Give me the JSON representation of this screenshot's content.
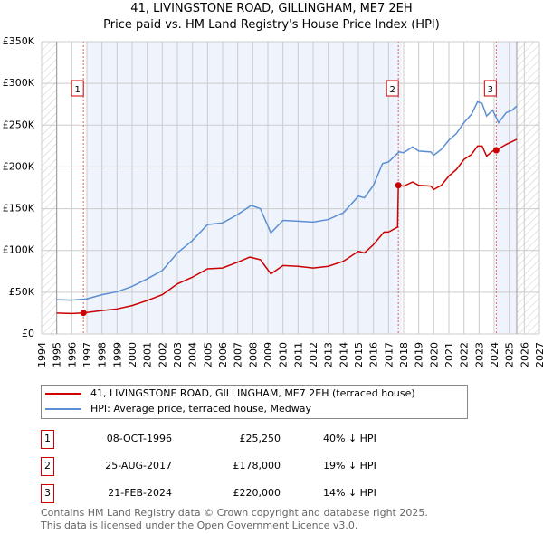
{
  "title": "41, LIVINGSTONE ROAD, GILLINGHAM, ME7 2EH",
  "subtitle": "Price paid vs. HM Land Registry's House Price Index (HPI)",
  "chart_data": {
    "type": "line",
    "title": "41, LIVINGSTONE ROAD, GILLINGHAM, ME7 2EH - Price paid vs. HM Land Registry's House Price Index (HPI)",
    "xlim": [
      1994,
      2027
    ],
    "ylim": [
      0,
      350000
    ],
    "x_ticks": [
      "1994",
      "1995",
      "1996",
      "1997",
      "1998",
      "1999",
      "2000",
      "2001",
      "2002",
      "2003",
      "2004",
      "2005",
      "2006",
      "2007",
      "2008",
      "2009",
      "2010",
      "2011",
      "2012",
      "2013",
      "2014",
      "2015",
      "2016",
      "2017",
      "2018",
      "2019",
      "2020",
      "2021",
      "2022",
      "2023",
      "2024",
      "2025",
      "2026",
      "2027"
    ],
    "y_ticks": [
      {
        "v": 0,
        "label": "£0"
      },
      {
        "v": 50000,
        "label": "£50K"
      },
      {
        "v": 100000,
        "label": "£100K"
      },
      {
        "v": 150000,
        "label": "£150K"
      },
      {
        "v": 200000,
        "label": "£200K"
      },
      {
        "v": 250000,
        "label": "£250K"
      },
      {
        "v": 300000,
        "label": "£300K"
      },
      {
        "v": 350000,
        "label": "£350K"
      }
    ],
    "grid": true,
    "data_range": [
      1995,
      2025.5
    ],
    "series": [
      {
        "name": "41, LIVINGSTONE ROAD, GILLINGHAM, ME7 2EH (terraced house)",
        "color": "#cc0000",
        "points": [
          [
            1995,
            25000
          ],
          [
            1996,
            24500
          ],
          [
            1996.77,
            25250
          ],
          [
            1998,
            28000
          ],
          [
            1999,
            30000
          ],
          [
            2000,
            34000
          ],
          [
            2001,
            40000
          ],
          [
            2002,
            47000
          ],
          [
            2003,
            60000
          ],
          [
            2004,
            68000
          ],
          [
            2005,
            78000
          ],
          [
            2006,
            79000
          ],
          [
            2007,
            86000
          ],
          [
            2007.8,
            92000
          ],
          [
            2008.5,
            89000
          ],
          [
            2009.2,
            72000
          ],
          [
            2010,
            82000
          ],
          [
            2011,
            81000
          ],
          [
            2012,
            79000
          ],
          [
            2013,
            81000
          ],
          [
            2014,
            87000
          ],
          [
            2015,
            99000
          ],
          [
            2015.4,
            97000
          ],
          [
            2016,
            107000
          ],
          [
            2016.7,
            122000
          ],
          [
            2017,
            122000
          ],
          [
            2017.6,
            128000
          ],
          [
            2017.65,
            178000
          ],
          [
            2018,
            177000
          ],
          [
            2018.6,
            182000
          ],
          [
            2019,
            178000
          ],
          [
            2019.8,
            177000
          ],
          [
            2020,
            173000
          ],
          [
            2020.5,
            178000
          ],
          [
            2021,
            189000
          ],
          [
            2021.5,
            197000
          ],
          [
            2022,
            209000
          ],
          [
            2022.5,
            215000
          ],
          [
            2022.9,
            225000
          ],
          [
            2023.2,
            225000
          ],
          [
            2023.5,
            213000
          ],
          [
            2023.9,
            219000
          ],
          [
            2024.14,
            220000
          ],
          [
            2024.8,
            227000
          ],
          [
            2025.5,
            233000
          ]
        ]
      },
      {
        "name": "HPI: Average price, terraced house, Medway",
        "color": "#5b8fd4",
        "points": [
          [
            1995,
            41000
          ],
          [
            1996,
            40500
          ],
          [
            1997,
            42000
          ],
          [
            1998,
            47000
          ],
          [
            1999,
            50500
          ],
          [
            2000,
            57000
          ],
          [
            2001,
            66000
          ],
          [
            2002,
            76000
          ],
          [
            2003,
            97000
          ],
          [
            2004,
            112000
          ],
          [
            2005,
            131000
          ],
          [
            2006,
            133000
          ],
          [
            2007,
            143000
          ],
          [
            2007.9,
            154000
          ],
          [
            2008.5,
            150000
          ],
          [
            2009.2,
            121000
          ],
          [
            2010,
            136000
          ],
          [
            2011,
            135000
          ],
          [
            2012,
            134000
          ],
          [
            2013,
            137000
          ],
          [
            2014,
            145000
          ],
          [
            2015,
            165000
          ],
          [
            2015.4,
            163000
          ],
          [
            2016,
            178000
          ],
          [
            2016.6,
            204000
          ],
          [
            2017,
            206000
          ],
          [
            2017.7,
            218000
          ],
          [
            2018,
            217000
          ],
          [
            2018.6,
            224000
          ],
          [
            2019,
            219000
          ],
          [
            2019.8,
            218000
          ],
          [
            2020,
            214000
          ],
          [
            2020.5,
            221000
          ],
          [
            2021,
            232000
          ],
          [
            2021.5,
            240000
          ],
          [
            2022,
            253000
          ],
          [
            2022.5,
            263000
          ],
          [
            2022.9,
            278000
          ],
          [
            2023.2,
            276000
          ],
          [
            2023.5,
            261000
          ],
          [
            2023.9,
            268000
          ],
          [
            2024.3,
            253000
          ],
          [
            2024.8,
            265000
          ],
          [
            2025.2,
            268000
          ],
          [
            2025.5,
            273000
          ]
        ]
      }
    ],
    "sales": [
      {
        "label": "1",
        "x": 1996.77,
        "y": 25250
      },
      {
        "label": "2",
        "x": 2017.65,
        "y": 178000
      },
      {
        "label": "3",
        "x": 2024.14,
        "y": 220000
      }
    ],
    "legend": "below"
  },
  "legend": {
    "items": [
      {
        "label": "41, LIVINGSTONE ROAD, GILLINGHAM, ME7 2EH (terraced house)",
        "color": "#cc0000"
      },
      {
        "label": "HPI: Average price, terraced house, Medway",
        "color": "#5b8fd4"
      }
    ]
  },
  "transactions": [
    {
      "num": "1",
      "date": "08-OCT-1996",
      "price": "£25,250",
      "hpi": "40% ↓ HPI"
    },
    {
      "num": "2",
      "date": "25-AUG-2017",
      "price": "£178,000",
      "hpi": "19% ↓ HPI"
    },
    {
      "num": "3",
      "date": "21-FEB-2024",
      "price": "£220,000",
      "hpi": "14% ↓ HPI"
    }
  ],
  "footer": [
    "Contains HM Land Registry data © Crown copyright and database right 2025.",
    "This data is licensed under the Open Government Licence v3.0."
  ]
}
